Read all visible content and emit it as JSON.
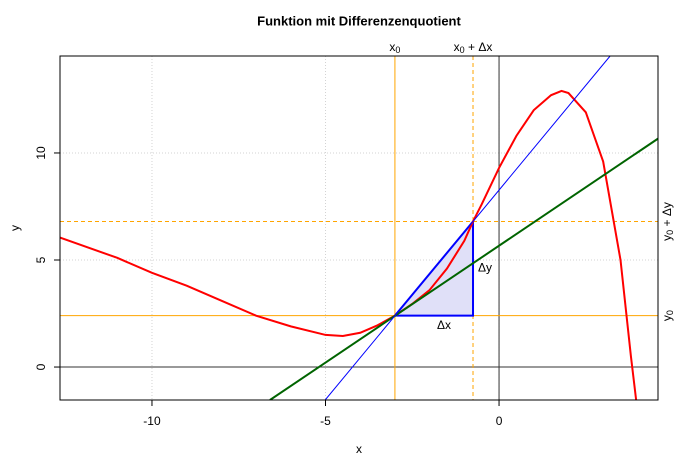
{
  "chart_data": {
    "type": "line",
    "title": "Funktion mit Differenzenquotient",
    "xlabel": "x",
    "ylabel": "y",
    "xlim": [
      -12.65,
      4.58
    ],
    "ylim": [
      -1.54,
      14.53
    ],
    "xticks": [
      -10,
      -5,
      0
    ],
    "yticks": [
      0,
      5,
      10
    ],
    "grid": true,
    "hlines": [
      0
    ],
    "vlines": [
      0
    ],
    "series": [
      {
        "color": "#ff0000",
        "width": 2,
        "x": [
          -12.65,
          -11,
          -10,
          -9,
          -8,
          -7,
          -6,
          -5,
          -4.5,
          -4,
          -3.5,
          -3,
          -2.5,
          -2,
          -1.5,
          -1,
          -0.75,
          -0.5,
          0,
          0.5,
          1,
          1.5,
          1.8,
          2,
          2.5,
          3,
          3.5,
          3.8,
          3.95
        ],
        "values": [
          6.05,
          5.1,
          4.4,
          3.8,
          3.1,
          2.4,
          1.9,
          1.5,
          1.45,
          1.6,
          1.95,
          2.4,
          2.95,
          3.6,
          4.6,
          5.9,
          6.8,
          7.6,
          9.3,
          10.8,
          12.0,
          12.7,
          12.9,
          12.8,
          11.9,
          9.6,
          5.0,
          0.5,
          -1.54
        ]
      },
      {
        "color": "#006400",
        "width": 2,
        "x": [
          -6.6,
          4.58
        ],
        "values": [
          -1.54,
          10.67
        ]
      },
      {
        "color": "#0000ff",
        "width": 1,
        "x": [
          -5.01,
          3.2
        ],
        "values": [
          -1.54,
          14.53
        ]
      }
    ],
    "markers": {
      "x": [
        {
          "value": -3,
          "label": "x",
          "sub": "0",
          "dash": false
        },
        {
          "value": -0.75,
          "label": "x",
          "sub": "0",
          "suffix": " + Δx",
          "dash": true
        }
      ],
      "y": [
        {
          "value": 2.4,
          "label": "y",
          "sub": "0",
          "dash": false
        },
        {
          "value": 6.8,
          "label": "y",
          "sub": "0",
          "suffix": " + Δy",
          "dash": true
        }
      ],
      "color": "#ffa500"
    },
    "triangle": {
      "fill": "#e0e0f8",
      "color": "#0000ff",
      "dx_label": "Δx",
      "dy_label": "Δy"
    }
  }
}
